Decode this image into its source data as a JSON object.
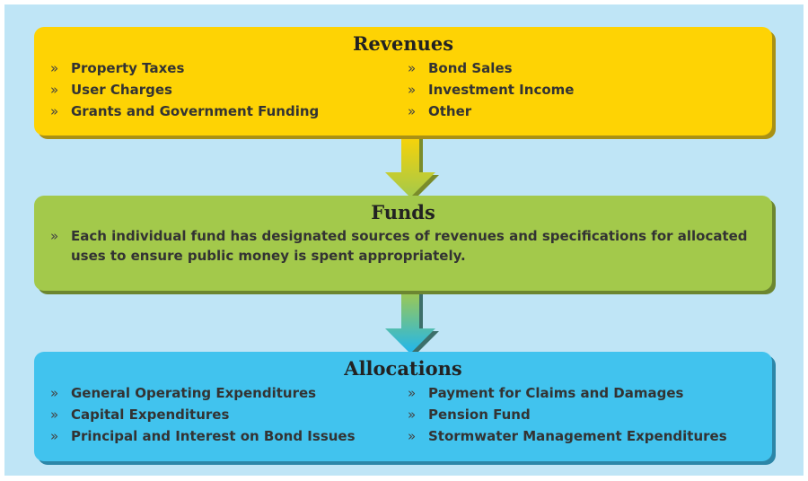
{
  "sections": [
    {
      "title": "Revenues",
      "columns": [
        [
          "Property Taxes",
          "User Charges",
          "Grants and Government Funding"
        ],
        [
          "Bond Sales",
          "Investment Income",
          "Other"
        ]
      ]
    },
    {
      "title": "Funds",
      "columns": [
        [
          "Each individual fund has designated sources of revenues and specifications for allocated uses to ensure public money is spent appropriately."
        ]
      ]
    },
    {
      "title": "Allocations",
      "columns": [
        [
          "General Operating Expenditures",
          "Capital Expenditures",
          "Principal and Interest on Bond Issues"
        ],
        [
          "Payment for Claims and Damages",
          "Pension Fund",
          "Stormwater Management Expenditures"
        ]
      ]
    }
  ]
}
